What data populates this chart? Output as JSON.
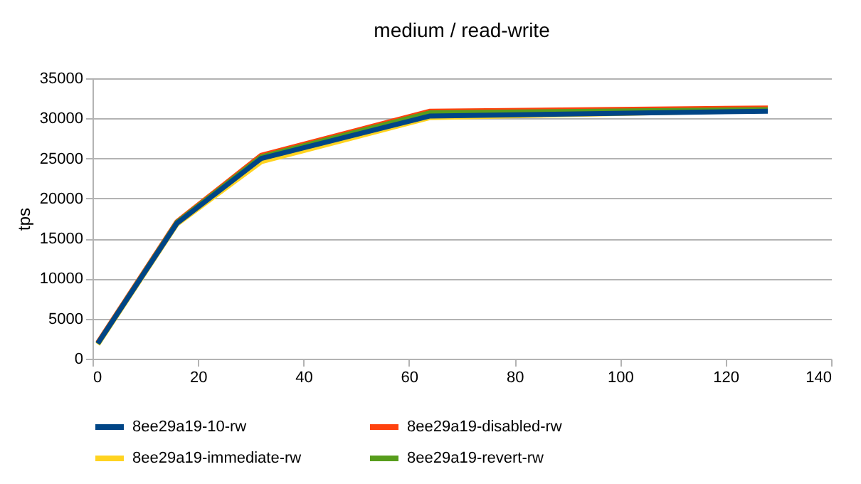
{
  "chart_data": {
    "type": "line",
    "title": "medium / read-write",
    "ylabel": "tps",
    "x": [
      1,
      16,
      32,
      64,
      128
    ],
    "series": [
      {
        "name": "8ee29a19-10-rw",
        "color": "#004586",
        "values": [
          1900,
          16900,
          25000,
          30300,
          30900
        ]
      },
      {
        "name": "8ee29a19-disabled-rw",
        "color": "#ff420e",
        "values": [
          2000,
          17100,
          25400,
          30900,
          31300
        ]
      },
      {
        "name": "8ee29a19-immediate-rw",
        "color": "#ffd320",
        "values": [
          1800,
          16800,
          24600,
          30100,
          31000
        ]
      },
      {
        "name": "8ee29a19-revert-rw",
        "color": "#579d1c",
        "values": [
          1900,
          17000,
          25200,
          30700,
          31100
        ]
      }
    ],
    "xlim": [
      0,
      140
    ],
    "xticks": [
      0,
      20,
      40,
      60,
      80,
      100,
      120,
      140
    ],
    "ylim": [
      0,
      35000
    ],
    "yticks": [
      0,
      5000,
      10000,
      15000,
      20000,
      25000,
      30000,
      35000
    ],
    "grid": "y",
    "legend": "bottom",
    "marker": "none",
    "line_style": "solid"
  }
}
